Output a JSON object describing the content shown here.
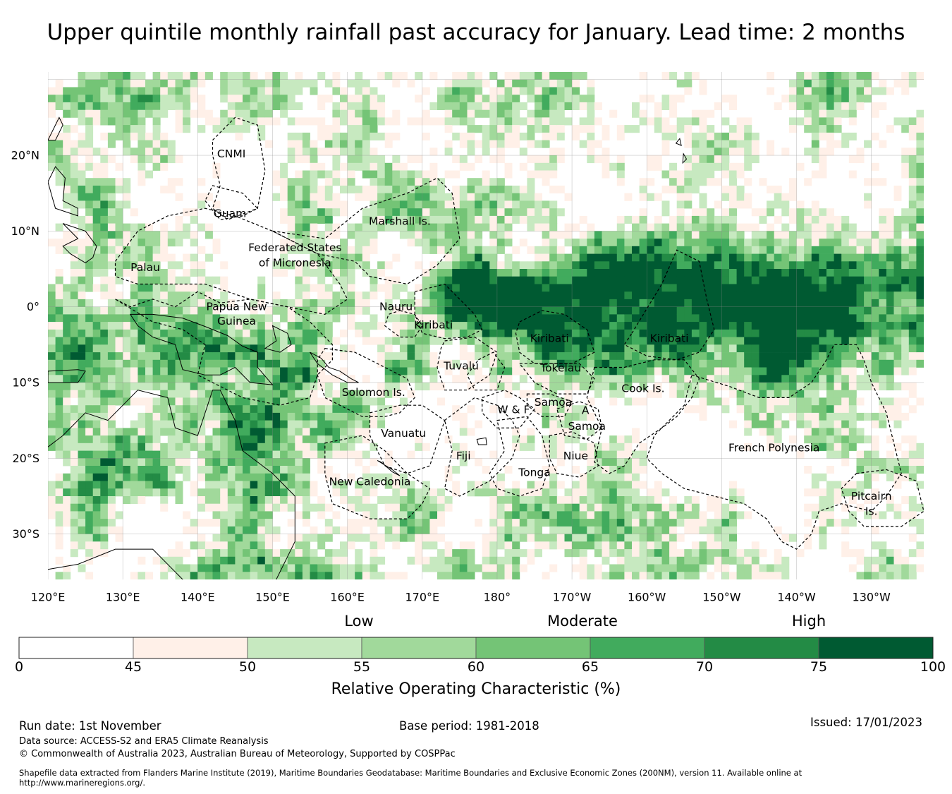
{
  "title": "Upper quintile monthly rainfall past accuracy for January. Lead time: 2 months",
  "map": {
    "lat_labels": [
      "20°N",
      "10°N",
      "0°",
      "10°S",
      "20°S",
      "30°S"
    ],
    "lat_values": [
      20,
      10,
      0,
      -10,
      -20,
      -30
    ],
    "lon_labels": [
      "120°E",
      "130°E",
      "140°E",
      "150°E",
      "160°E",
      "170°E",
      "180°",
      "170°W",
      "160°W",
      "150°W",
      "140°W",
      "130°W"
    ],
    "lon_values": [
      120,
      130,
      140,
      150,
      160,
      170,
      180,
      190,
      200,
      210,
      220,
      230
    ],
    "extent": {
      "lon_min": 120,
      "lon_max": 237,
      "lat_min": -36,
      "lat_max": 31
    },
    "regions": [
      {
        "name": "CNMI",
        "lon": 144.5,
        "lat": 20.2
      },
      {
        "name": "Guam",
        "lon": 144.3,
        "lat": 12.3
      },
      {
        "name": "Marshall Is.",
        "lon": 167,
        "lat": 11.3
      },
      {
        "name": "Federated States",
        "lon": 153,
        "lat": 7.8
      },
      {
        "name": "of Micronesia",
        "lon": 153,
        "lat": 5.8
      },
      {
        "name": "Palau",
        "lon": 133,
        "lat": 5.2
      },
      {
        "name": "Papua New",
        "lon": 145.2,
        "lat": 0.0
      },
      {
        "name": "Guinea",
        "lon": 145.2,
        "lat": -1.9
      },
      {
        "name": "Nauru",
        "lon": 166.5,
        "lat": 0.0
      },
      {
        "name": "Kiribati",
        "lon": 171.5,
        "lat": -2.4
      },
      {
        "name": "Kiribati",
        "lon": 187,
        "lat": -4.2
      },
      {
        "name": "Kiribati",
        "lon": 203,
        "lat": -4.2
      },
      {
        "name": "Tuvalu",
        "lon": 175.2,
        "lat": -7.8
      },
      {
        "name": "Tokelau",
        "lon": 188.5,
        "lat": -8.1
      },
      {
        "name": "Cook Is.",
        "lon": 199.5,
        "lat": -10.8
      },
      {
        "name": "Solomon Is.",
        "lon": 163.5,
        "lat": -11.3
      },
      {
        "name": "Samoa",
        "lon": 187.5,
        "lat": -12.6
      },
      {
        "name": "W & F",
        "lon": 182.2,
        "lat": -13.6
      },
      {
        "name": "A",
        "lon": 191.8,
        "lat": -13.7
      },
      {
        "name": "Samoa",
        "lon": 192,
        "lat": -15.8
      },
      {
        "name": "Vanuatu",
        "lon": 167.5,
        "lat": -16.7
      },
      {
        "name": "French Polynesia",
        "lon": 217,
        "lat": -18.6
      },
      {
        "name": "Fiji",
        "lon": 175.5,
        "lat": -19.7
      },
      {
        "name": "Niue",
        "lon": 190.5,
        "lat": -19.7
      },
      {
        "name": "Tonga",
        "lon": 185,
        "lat": -21.9
      },
      {
        "name": "New Caledonia",
        "lon": 163,
        "lat": -23.1
      },
      {
        "name": "Pitcairn",
        "lon": 230,
        "lat": -25.0
      },
      {
        "name": "Is.",
        "lon": 230,
        "lat": -27.0
      }
    ]
  },
  "legend": {
    "level_labels": [
      "Low",
      "Moderate",
      "High"
    ],
    "boundaries": [
      0,
      45,
      50,
      55,
      60,
      65,
      70,
      75,
      100
    ],
    "tick_labels": [
      "0",
      "45",
      "50",
      "55",
      "60",
      "65",
      "70",
      "75",
      "100"
    ],
    "colors": [
      "#ffffff",
      "#fff0e8",
      "#c7e9c0",
      "#a1d99b",
      "#74c476",
      "#41ab5d",
      "#238b45",
      "#005a32"
    ],
    "label": "Relative Operating Characteristic (%)"
  },
  "footer": {
    "run_date": "Run date: 1st November",
    "base_period": "Base period: 1981-2018",
    "issued": "Issued: 17/01/2023",
    "data_source": "Data source: ACCESS-S2 and ERA5 Climate Reanalysis",
    "copyright": "© Commonwealth of Australia 2023, Australian Bureau of Meteorology, Supported by COSPPac",
    "shapefile_line1": "Shapefile data extracted from Flanders Marine Institute (2019), Maritime Boundaries Geodatabase: Maritime Boundaries and Exclusive Economic Zones (200NM), version 11. Available online at",
    "shapefile_line2": "http://www.marineregions.org/."
  }
}
